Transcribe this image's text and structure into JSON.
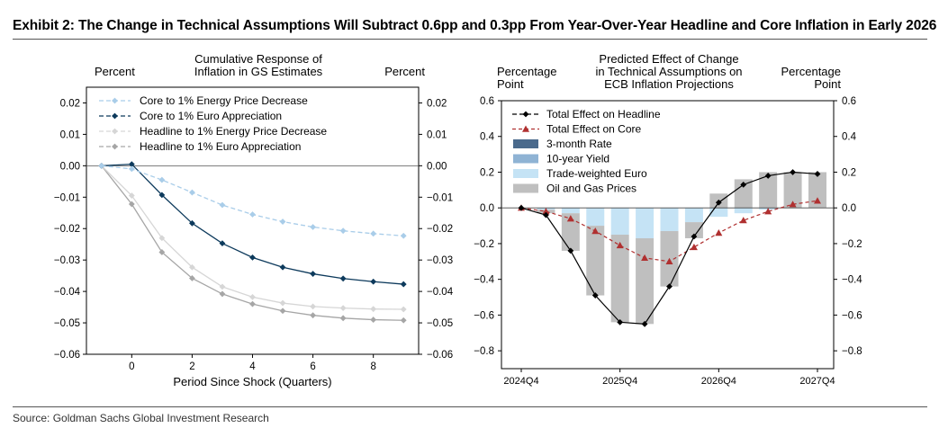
{
  "title": "Exhibit 2: The Change in Technical Assumptions Will Subtract 0.6pp and 0.3pp From Year-Over-Year Headline and Core Inflation in Early 2026",
  "source": "Source: Goldman Sachs Global Investment Research",
  "chart_data": [
    {
      "type": "line",
      "title_lines": [
        "Cumulative Response of",
        "Inflation in GS Estimates"
      ],
      "ylabel_left": "Percent",
      "ylabel_right": "Percent",
      "xlabel": "Period Since Shock (Quarters)",
      "xlim": [
        -1.5,
        9.5
      ],
      "ylim": [
        -0.06,
        0.025
      ],
      "xticks": [
        0,
        2,
        4,
        6,
        8
      ],
      "yticks": [
        -0.06,
        -0.05,
        -0.04,
        -0.03,
        -0.02,
        -0.01,
        0.0,
        0.01,
        0.02
      ],
      "ytick_labels": [
        "−0.06",
        "−0.05",
        "−0.04",
        "−0.03",
        "−0.02",
        "−0.01",
        "0.00",
        "0.01",
        "0.02"
      ],
      "legend_position": "top-left",
      "x": [
        -1,
        0,
        1,
        2,
        3,
        4,
        5,
        6,
        7,
        8,
        9
      ],
      "series": [
        {
          "name": "Core to 1% Energy Price Decrease",
          "color": "#a9cde9",
          "dash": true,
          "values": [
            0,
            -0.001,
            -0.0045,
            -0.0085,
            -0.0125,
            -0.0155,
            -0.0178,
            -0.0195,
            -0.0207,
            -0.0216,
            -0.0223
          ]
        },
        {
          "name": "Core to 1% Euro Appreciation",
          "color": "#0d3a5c",
          "dash": false,
          "values": [
            0,
            0.0005,
            -0.0093,
            -0.0183,
            -0.0247,
            -0.0292,
            -0.0323,
            -0.0344,
            -0.0359,
            -0.0369,
            -0.0377
          ]
        },
        {
          "name": "Headline to 1% Energy Price Decrease",
          "color": "#d6d6d6",
          "dash": false,
          "values": [
            0,
            -0.0095,
            -0.023,
            -0.0323,
            -0.0385,
            -0.0418,
            -0.0437,
            -0.0448,
            -0.0453,
            -0.0456,
            -0.0457
          ]
        },
        {
          "name": "Headline to 1% Euro Appreciation",
          "color": "#a6a6a6",
          "dash": false,
          "values": [
            0,
            -0.0122,
            -0.0275,
            -0.0358,
            -0.0408,
            -0.044,
            -0.0462,
            -0.0476,
            -0.0485,
            -0.049,
            -0.0492
          ]
        }
      ]
    },
    {
      "type": "bar",
      "title_lines": [
        "Predicted Effect of Change",
        "in Technical Assumptions on",
        "ECB Inflation Projections"
      ],
      "ylabel_left_lines": [
        "Percentage",
        "Point"
      ],
      "ylabel_right_lines": [
        "Percentage",
        "Point"
      ],
      "ylim": [
        -0.9,
        0.6
      ],
      "yticks": [
        -0.8,
        -0.6,
        -0.4,
        -0.2,
        0.0,
        0.2,
        0.4,
        0.6
      ],
      "ytick_labels": [
        "−0.8",
        "−0.6",
        "−0.4",
        "−0.2",
        "0.0",
        "0.2",
        "0.4",
        "0.6"
      ],
      "legend_position": "top-left",
      "categories": [
        "2024Q4",
        "2025Q1",
        "2025Q2",
        "2025Q3",
        "2025Q4",
        "2026Q1",
        "2026Q2",
        "2026Q3",
        "2026Q4",
        "2027Q1",
        "2027Q2",
        "2027Q3",
        "2027Q4"
      ],
      "xtick_labels": [
        "2024Q4",
        "2025Q4",
        "2026Q4",
        "2027Q4"
      ],
      "xtick_indices": [
        0,
        4,
        8,
        12
      ],
      "bar_series": [
        {
          "name": "3-month Rate",
          "color": "#4a6a8c",
          "values": [
            0,
            0,
            0,
            0,
            0,
            0,
            0,
            0,
            0,
            0,
            0,
            0,
            0
          ]
        },
        {
          "name": "10-year Yield",
          "color": "#8fb3d4",
          "values": [
            0,
            0,
            0,
            0,
            0,
            0,
            0,
            0,
            0,
            0,
            0,
            0,
            0
          ]
        },
        {
          "name": "Trade-weighted Euro",
          "color": "#c5e3f5",
          "values": [
            0,
            -0.01,
            -0.03,
            -0.1,
            -0.15,
            -0.17,
            -0.13,
            -0.08,
            -0.05,
            -0.03,
            -0.01,
            0,
            0
          ]
        },
        {
          "name": "Oil and Gas Prices",
          "color": "#bfbfbf",
          "values": [
            0,
            -0.02,
            -0.21,
            -0.39,
            -0.49,
            -0.48,
            -0.31,
            -0.09,
            0.08,
            0.16,
            0.2,
            0.2,
            0.2
          ]
        }
      ],
      "line_series": [
        {
          "name": "Total Effect on Headline",
          "color": "#000000",
          "values": [
            0,
            -0.04,
            -0.24,
            -0.49,
            -0.64,
            -0.65,
            -0.44,
            -0.16,
            0.03,
            0.13,
            0.18,
            0.2,
            0.19
          ]
        },
        {
          "name": "Total Effect on Core",
          "color": "#b03030",
          "values": [
            0,
            -0.02,
            -0.06,
            -0.13,
            -0.21,
            -0.28,
            -0.3,
            -0.22,
            -0.14,
            -0.07,
            -0.02,
            0.02,
            0.04
          ]
        }
      ]
    }
  ]
}
